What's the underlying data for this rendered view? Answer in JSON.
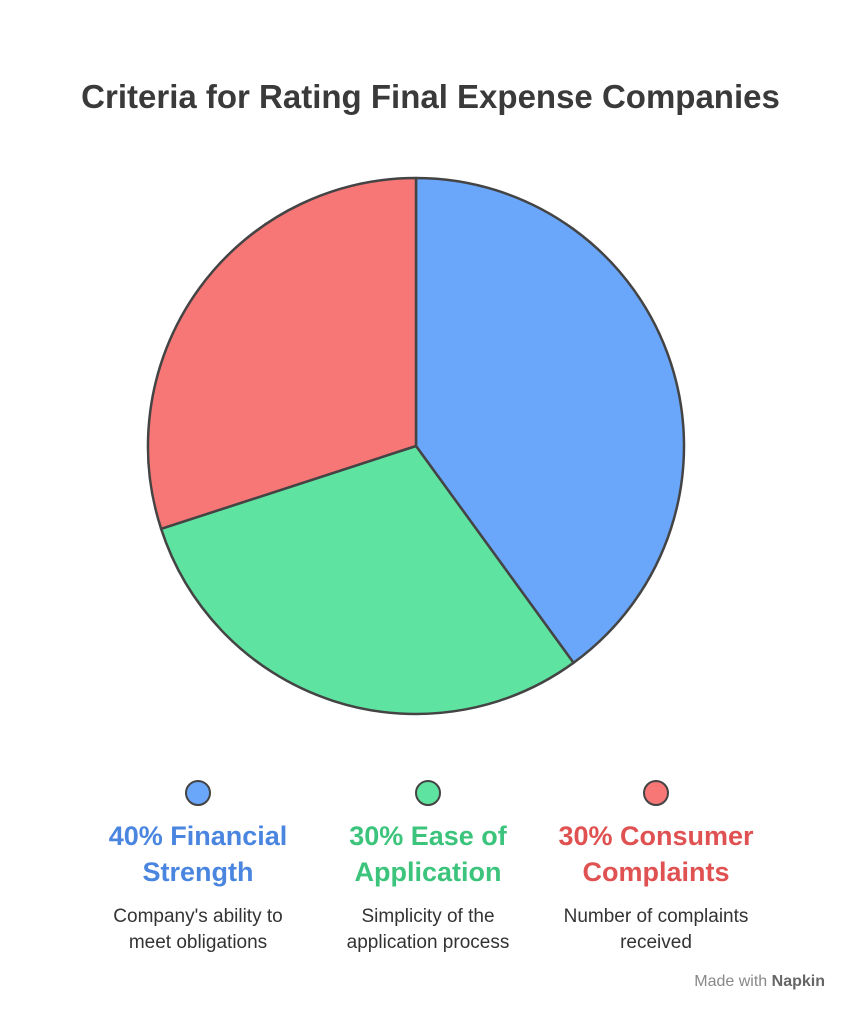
{
  "chart_data": {
    "type": "pie",
    "title": "Criteria for Rating Final Expense Companies",
    "categories": [
      "40% Financial Strength",
      "30% Ease of Application",
      "30% Consumer Complaints"
    ],
    "values": [
      40,
      30,
      30
    ],
    "colors": [
      "#6aa6fa",
      "#5fe3a1",
      "#f77676"
    ],
    "label_colors": [
      "#4a86e0",
      "#3cc47c",
      "#e05252"
    ],
    "descriptions": [
      "Company's ability to meet obligations",
      "Simplicity of the application process",
      "Number of complaints received"
    ]
  },
  "footer": {
    "text": "Made with",
    "brand": "Napkin"
  }
}
